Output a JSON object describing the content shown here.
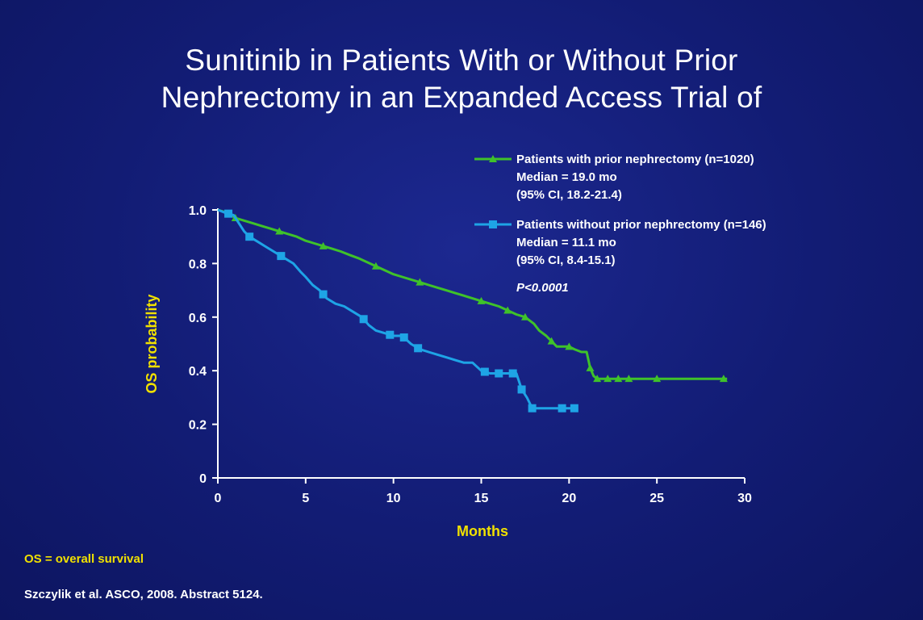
{
  "slide": {
    "title_lines": [
      "Sunitinib in Patients With or Without Prior",
      "Nephrectomy in an Expanded Access Trial of"
    ],
    "footnote": "OS = overall survival",
    "citation": "Szczylik et al. ASCO, 2008. Abstract 5124."
  },
  "colors": {
    "background": "#121c74",
    "axis_text": "#ffffff",
    "axis_title": "#f0e000",
    "series_with": "#3fc22a",
    "series_without": "#1ea4e6"
  },
  "chart_data": {
    "type": "line",
    "xlabel": "Months",
    "ylabel": "OS probability",
    "xlim": [
      0,
      30
    ],
    "ylim": [
      0,
      1.0
    ],
    "x_ticks": [
      "0",
      "5",
      "10",
      "15",
      "20",
      "25",
      "30"
    ],
    "y_ticks": [
      "0",
      "0.2",
      "0.4",
      "0.6",
      "0.8",
      "1.0"
    ],
    "legend_position": "top-right",
    "p_value": "P<0.0001",
    "series": [
      {
        "name": "Patients with prior nephrectomy (n=1020)",
        "median": "Median = 19.0 mo",
        "ci": "(95% CI, 18.2-21.4)",
        "color_key": "series_with",
        "marker": "triangle",
        "points": [
          [
            0,
            1.0
          ],
          [
            0.5,
            0.99
          ],
          [
            1,
            0.97
          ],
          [
            1.5,
            0.96
          ],
          [
            2,
            0.95
          ],
          [
            2.5,
            0.94
          ],
          [
            3,
            0.93
          ],
          [
            3.5,
            0.92
          ],
          [
            4,
            0.91
          ],
          [
            4.5,
            0.9
          ],
          [
            5,
            0.885
          ],
          [
            5.5,
            0.875
          ],
          [
            6,
            0.865
          ],
          [
            6.5,
            0.855
          ],
          [
            7,
            0.845
          ],
          [
            7.5,
            0.832
          ],
          [
            8,
            0.82
          ],
          [
            8.5,
            0.805
          ],
          [
            9,
            0.79
          ],
          [
            9.5,
            0.775
          ],
          [
            10,
            0.76
          ],
          [
            10.5,
            0.75
          ],
          [
            11,
            0.74
          ],
          [
            11.5,
            0.73
          ],
          [
            12,
            0.72
          ],
          [
            12.5,
            0.71
          ],
          [
            13,
            0.7
          ],
          [
            13.5,
            0.69
          ],
          [
            14,
            0.68
          ],
          [
            14.5,
            0.67
          ],
          [
            15,
            0.66
          ],
          [
            15.5,
            0.65
          ],
          [
            16,
            0.64
          ],
          [
            16.5,
            0.625
          ],
          [
            17,
            0.61
          ],
          [
            17.5,
            0.6
          ],
          [
            18,
            0.575
          ],
          [
            18.3,
            0.55
          ],
          [
            18.7,
            0.53
          ],
          [
            19,
            0.51
          ],
          [
            19.3,
            0.49
          ],
          [
            19.6,
            0.49
          ],
          [
            20,
            0.49
          ],
          [
            20.3,
            0.48
          ],
          [
            20.7,
            0.47
          ],
          [
            21,
            0.47
          ],
          [
            21.1,
            0.44
          ],
          [
            21.2,
            0.41
          ],
          [
            21.4,
            0.38
          ],
          [
            21.6,
            0.37
          ],
          [
            22,
            0.37
          ],
          [
            23,
            0.37
          ],
          [
            24,
            0.37
          ],
          [
            25,
            0.37
          ],
          [
            26,
            0.37
          ],
          [
            27,
            0.37
          ],
          [
            28,
            0.37
          ],
          [
            29,
            0.37
          ]
        ],
        "markers_x": [
          1,
          3.5,
          6,
          9,
          11.5,
          15,
          16.5,
          17.5,
          19,
          20,
          21.2,
          21.6,
          22.2,
          22.8,
          23.4,
          25,
          28.8
        ]
      },
      {
        "name": "Patients without prior nephrectomy (n=146)",
        "median": "Median = 11.1 mo",
        "ci": "(95% CI, 8.4-15.1)",
        "color_key": "series_without",
        "marker": "square",
        "points": [
          [
            0,
            1.0
          ],
          [
            0.4,
            0.99
          ],
          [
            0.9,
            0.98
          ],
          [
            1.2,
            0.95
          ],
          [
            1.5,
            0.92
          ],
          [
            1.8,
            0.9
          ],
          [
            2.3,
            0.88
          ],
          [
            2.8,
            0.86
          ],
          [
            3.3,
            0.84
          ],
          [
            3.8,
            0.82
          ],
          [
            4.3,
            0.8
          ],
          [
            4.7,
            0.77
          ],
          [
            5.0,
            0.75
          ],
          [
            5.4,
            0.72
          ],
          [
            5.8,
            0.7
          ],
          [
            6.2,
            0.67
          ],
          [
            6.7,
            0.65
          ],
          [
            7.2,
            0.64
          ],
          [
            7.7,
            0.62
          ],
          [
            8.2,
            0.6
          ],
          [
            8.6,
            0.57
          ],
          [
            9.0,
            0.55
          ],
          [
            9.5,
            0.54
          ],
          [
            10,
            0.53
          ],
          [
            10.5,
            0.53
          ],
          [
            11,
            0.5
          ],
          [
            11.5,
            0.48
          ],
          [
            12,
            0.47
          ],
          [
            12.5,
            0.46
          ],
          [
            13,
            0.45
          ],
          [
            13.5,
            0.44
          ],
          [
            14,
            0.43
          ],
          [
            14.5,
            0.43
          ],
          [
            15,
            0.4
          ],
          [
            15.5,
            0.39
          ],
          [
            16,
            0.39
          ],
          [
            16.5,
            0.39
          ],
          [
            17,
            0.39
          ],
          [
            17.3,
            0.33
          ],
          [
            17.6,
            0.3
          ],
          [
            17.9,
            0.26
          ],
          [
            18.5,
            0.26
          ],
          [
            19,
            0.26
          ],
          [
            19.5,
            0.26
          ],
          [
            20,
            0.26
          ],
          [
            20.5,
            0.26
          ]
        ],
        "markers_x": [
          0.6,
          1.8,
          3.6,
          6.0,
          8.3,
          9.8,
          10.6,
          11.4,
          15.2,
          16.0,
          16.8,
          17.3,
          17.9,
          19.6,
          20.3
        ]
      }
    ]
  }
}
